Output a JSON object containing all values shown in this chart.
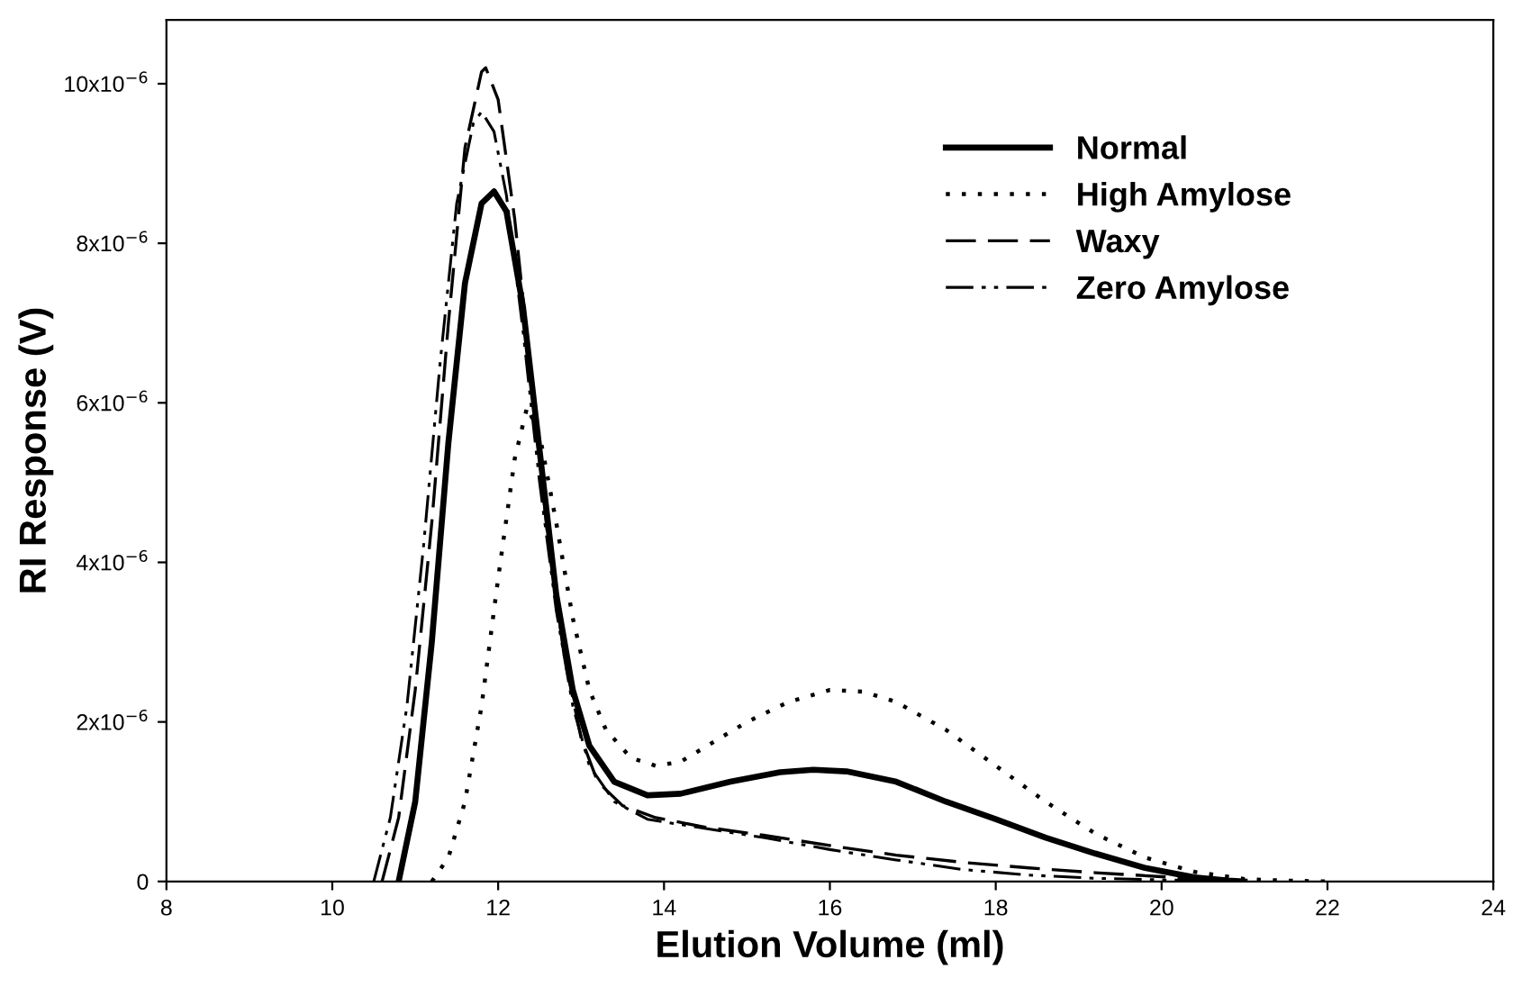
{
  "chart_data": {
    "type": "line",
    "xlabel": "Elution Volume (ml)",
    "ylabel": "RI Response (V)",
    "xlim": [
      8,
      24
    ],
    "xticks": [
      8,
      10,
      12,
      14,
      16,
      18,
      20,
      22,
      24
    ],
    "ylim": [
      0,
      1.08e-05
    ],
    "yticks": [
      0,
      {
        "value": 2e-06,
        "label": "2x10$^{−6}$"
      },
      {
        "value": 4e-06,
        "label": "4x10$^{−6}$"
      },
      {
        "value": 6e-06,
        "label": "6x10$^{−6}$"
      },
      {
        "value": 8e-06,
        "label": "8x10$^{−6}$"
      },
      {
        "value": 1e-05,
        "label": "10x10$^{−6}$"
      }
    ],
    "grid": false,
    "legend": "top right",
    "marker": "none",
    "series": [
      {
        "name": "Normal",
        "color": "#000000",
        "line_style": "solid",
        "x": [
          10.8,
          11.0,
          11.2,
          11.4,
          11.6,
          11.8,
          11.95,
          12.1,
          12.3,
          12.5,
          12.7,
          12.9,
          13.1,
          13.4,
          13.8,
          14.2,
          14.8,
          15.4,
          15.8,
          16.2,
          16.8,
          17.4,
          18.0,
          18.6,
          19.2,
          19.8,
          20.4,
          20.8,
          21.0
        ],
        "values": [
          0,
          1e-06,
          3e-06,
          5.5e-06,
          7.5e-06,
          8.5e-06,
          8.65e-06,
          8.4e-06,
          7.2e-06,
          5.4e-06,
          3.6e-06,
          2.4e-06,
          1.7e-06,
          1.25e-06,
          1.08e-06,
          1.1e-06,
          1.25e-06,
          1.37e-06,
          1.4e-06,
          1.38e-06,
          1.25e-06,
          1e-06,
          7.8e-07,
          5.5e-07,
          3.5e-07,
          1.7e-07,
          5e-08,
          1e-08,
          0
        ]
      },
      {
        "name": "High Amylose",
        "color": "#000000",
        "line_style": "dotted",
        "x": [
          11.2,
          11.4,
          11.6,
          11.8,
          12.0,
          12.2,
          12.35,
          12.5,
          12.7,
          12.9,
          13.1,
          13.3,
          13.6,
          13.9,
          14.2,
          14.6,
          15.0,
          15.5,
          16.0,
          16.4,
          16.8,
          17.4,
          18.0,
          18.6,
          19.2,
          19.8,
          20.4,
          21.0,
          21.5,
          22.0
        ],
        "values": [
          0,
          3e-07,
          1e-06,
          2.2e-06,
          3.8e-06,
          5.3e-06,
          5.95e-06,
          5.6e-06,
          4.5e-06,
          3.3e-06,
          2.4e-06,
          1.9e-06,
          1.55e-06,
          1.45e-06,
          1.5e-06,
          1.75e-06,
          2e-06,
          2.25e-06,
          2.4e-06,
          2.38e-06,
          2.25e-06,
          1.9e-06,
          1.45e-06,
          1e-06,
          6e-07,
          3e-07,
          1.2e-07,
          3e-08,
          1e-08,
          0
        ]
      },
      {
        "name": "Waxy",
        "color": "#000000",
        "line_style": "dashed",
        "x": [
          10.6,
          10.8,
          11.0,
          11.2,
          11.4,
          11.6,
          11.8,
          11.85,
          12.0,
          12.2,
          12.4,
          12.6,
          12.8,
          13.0,
          13.2,
          13.5,
          13.9,
          14.5,
          15.2,
          16.0,
          16.8,
          17.6,
          18.4,
          19.2,
          20.0,
          20.6,
          21.0
        ],
        "values": [
          0,
          8e-07,
          2.4e-06,
          4.5e-06,
          7e-06,
          9.2e-06,
          1.015e-05,
          1.02e-05,
          9.8e-06,
          8.3e-06,
          6.3e-06,
          4.3e-06,
          2.8e-06,
          1.8e-06,
          1.25e-06,
          9.5e-07,
          8e-07,
          6.8e-07,
          5.8e-07,
          4.5e-07,
          3.3e-07,
          2.4e-07,
          1.7e-07,
          1.1e-07,
          6e-08,
          2e-08,
          0
        ]
      },
      {
        "name": "Zero Amylose",
        "color": "#000000",
        "line_style": "dashdot",
        "x": [
          10.5,
          10.7,
          10.9,
          11.1,
          11.3,
          11.5,
          11.7,
          11.8,
          11.95,
          12.1,
          12.3,
          12.5,
          12.7,
          12.9,
          13.1,
          13.4,
          13.8,
          14.4,
          15.2,
          16.0,
          16.8,
          17.6,
          18.4,
          19.2,
          20.0,
          20.8
        ],
        "values": [
          0,
          8e-07,
          2.2e-06,
          4.2e-06,
          6.5e-06,
          8.5e-06,
          9.5e-06,
          9.65e-06,
          9.4e-06,
          8.6e-06,
          6.9e-06,
          5e-06,
          3.4e-06,
          2.2e-06,
          1.45e-06,
          1e-06,
          7.8e-07,
          6.8e-07,
          5.5e-07,
          4e-07,
          2.7e-07,
          1.5e-07,
          8e-08,
          4e-08,
          2e-08,
          0
        ]
      }
    ]
  }
}
